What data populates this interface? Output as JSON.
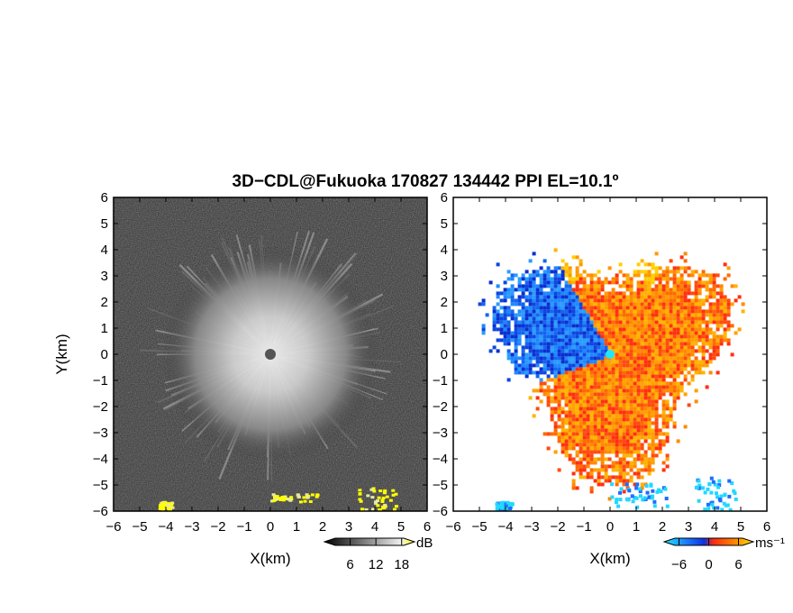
{
  "figure": {
    "title": "3D−CDL@Fukuoka 170827 134442 PPI EL=10.1º"
  },
  "chart_data": [
    {
      "type": "heatmap",
      "variable": "signal-to-noise ratio",
      "xlabel": "X(km)",
      "ylabel": "Y(km)",
      "xlim": [
        -6,
        6
      ],
      "ylim": [
        -6,
        6
      ],
      "x_ticks": [
        "−6",
        "−5",
        "−4",
        "−3",
        "−2",
        "−1",
        "0",
        "1",
        "2",
        "3",
        "4",
        "5",
        "6"
      ],
      "y_ticks": [
        "−6",
        "−5",
        "−4",
        "−3",
        "−2",
        "−1",
        "0",
        "1",
        "2",
        "3",
        "4",
        "5",
        "6"
      ],
      "grid": false,
      "colormap": "grayscale, saturating to yellow above 18 dB",
      "colorbar": {
        "unit": "dB",
        "tick_labels": [
          "6",
          "12",
          "18"
        ],
        "ticks": [
          6,
          12,
          18
        ],
        "range": [
          0,
          21
        ],
        "extend": "both"
      },
      "features": {
        "radar_center": [
          0,
          0
        ],
        "bright_core_radius_km": 3.8,
        "yellow_echo_regions": [
          {
            "x": [
              0.0,
              1.8
            ],
            "y": [
              -5.6,
              -5.3
            ]
          },
          {
            "x": [
              3.3,
              4.8
            ],
            "y": [
              -5.9,
              -5.0
            ]
          },
          {
            "x": [
              -4.3,
              -3.8
            ],
            "y": [
              -5.9,
              -5.6
            ]
          }
        ]
      }
    },
    {
      "type": "heatmap",
      "variable": "radial velocity",
      "xlabel": "X(km)",
      "ylabel": "",
      "xlim": [
        -6,
        6
      ],
      "ylim": [
        -6,
        6
      ],
      "x_ticks": [
        "−6",
        "−5",
        "−4",
        "−3",
        "−2",
        "−1",
        "0",
        "1",
        "2",
        "3",
        "4",
        "5",
        "6"
      ],
      "y_ticks": [
        "−6",
        "−5",
        "−4",
        "−3",
        "−2",
        "−1",
        "0",
        "1",
        "2",
        "3",
        "4",
        "5",
        "6"
      ],
      "grid": false,
      "colormap": "cyan-blue (negative) to red-orange-yellow (positive)",
      "colorbar": {
        "unit": "ms⁻¹",
        "tick_labels": [
          "−6",
          "0",
          "6"
        ],
        "ticks": [
          -6,
          0,
          6
        ],
        "range": [
          -9,
          9
        ],
        "extend": "both"
      },
      "features": {
        "radar_center": [
          0,
          0
        ],
        "negative_velocity_sector_deg": [
          120,
          200
        ],
        "positive_velocity_sector_deg": [
          200,
          440
        ],
        "echo_radius_km": [
          3.0,
          5.0
        ],
        "cyan_echo_regions": [
          {
            "x": [
              -4.4,
              -3.8
            ],
            "y": [
              -5.9,
              -5.6
            ]
          },
          {
            "x": [
              0.0,
              2.2
            ],
            "y": [
              -5.8,
              -4.9
            ]
          },
          {
            "x": [
              3.2,
              4.8
            ],
            "y": [
              -5.9,
              -4.6
            ]
          }
        ]
      }
    }
  ]
}
